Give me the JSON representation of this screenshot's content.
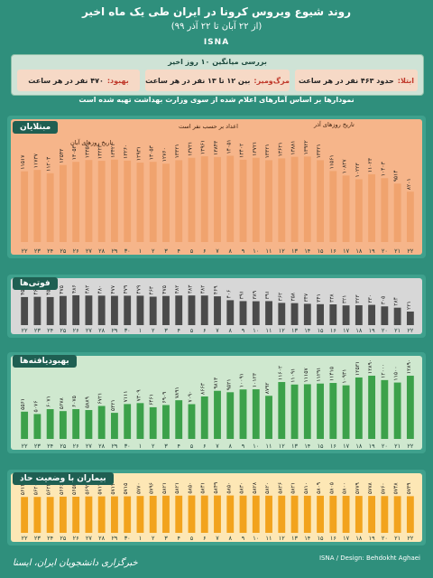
{
  "header": {
    "title": "روند شیوع ویروس کرونا در ایران طی یک ماه اخیر",
    "subtitle": "(از ۲۲ آبان تا ۲۲ آذر ۹۹)",
    "logo": "ISNA"
  },
  "summary": {
    "title": "بررسی میانگین ۱۰ روز اخیر",
    "infected_label": "ابتلا:",
    "infected_value": "حدود ۴۶۳ نفر در هر ساعت",
    "deaths_label": "مرگ‌ومیر:",
    "deaths_value": "بین ۱۲ تا ۱۳ نفر در هر ساعت",
    "recovered_label": "بهبود:",
    "recovered_value": "۴۷۰ نفر در هر ساعت"
  },
  "note": "نمودارها بر اساس آمارهای اعلام شده از سوی وزارت بهداشت تهیه شده است",
  "colors": {
    "infected": "#f0a36e",
    "deaths": "#4a4a4a",
    "recovered": "#3ca14a",
    "critical": "#f2a31d"
  },
  "chart_data": [
    {
      "type": "bar",
      "title": "مبتلایان",
      "annotations": [
        "تاریخ روزهای آبان",
        "تاریخ روزهای آذر",
        "اعداد بر حسب نفر است"
      ],
      "categories": [
        "۲۲",
        "۲۳",
        "۲۴",
        "۲۵",
        "۲۶",
        "۲۷",
        "۲۸",
        "۲۹",
        "۳۰",
        "۱",
        "۲",
        "۳",
        "۴",
        "۵",
        "۶",
        "۷",
        "۸",
        "۹",
        "۱۰",
        "۱۱",
        "۱۲",
        "۱۳",
        "۱۴",
        "۱۵",
        "۱۶",
        "۱۷",
        "۱۸",
        "۱۹",
        "۲۰",
        "۲۱",
        "۲۲"
      ],
      "values": [
        11517,
        11737,
        11203,
        12543,
        13053,
        13352,
        13223,
        13421,
        13260,
        12931,
        13053,
        12760,
        13321,
        13721,
        13961,
        13843,
        14051,
        13402,
        13721,
        13321,
        13621,
        13881,
        13922,
        13321,
        11561,
        10827,
        10223,
        11023,
        10403,
        9514,
        8201
      ],
      "labels": [
        "۱۱۵۱۷",
        "۱۱۷۳۷",
        "۱۱۲۰۳",
        "۱۲۵۴۳",
        "۱۳۰۵۳",
        "۱۳۳۵۲",
        "۱۳۲۲۳",
        "۱۳۴۲۱",
        "۱۳۲۶۰",
        "۱۲۹۳۱",
        "۱۳۰۵۳",
        "۱۲۷۶۰",
        "۱۳۳۲۱",
        "۱۳۷۲۱",
        "۱۳۹۶۱",
        "۱۳۸۴۳",
        "۱۴۰۵۱",
        "۱۳۴۰۲",
        "۱۳۷۲۱",
        "۱۳۳۲۱",
        "۱۳۶۲۱",
        "۱۳۸۸۱",
        "۱۳۹۲۲",
        "۱۳۳۲۱",
        "۱۱۵۶۱",
        "۱۰۸۲۷",
        "۱۰۲۲۳",
        "۱۱۰۲۳",
        "۱۰۴۰۳",
        "۹۵۱۴",
        "۸۲۰۱"
      ],
      "ylim": [
        0,
        15000
      ]
    },
    {
      "type": "bar",
      "title": "فوتی‌ها",
      "categories": [
        "۲۲",
        "۲۳",
        "۲۴",
        "۲۵",
        "۲۶",
        "۲۷",
        "۲۸",
        "۲۹",
        "۳۰",
        "۱",
        "۲",
        "۳",
        "۴",
        "۵",
        "۶",
        "۷",
        "۸",
        "۹",
        "۱۰",
        "۱۱",
        "۱۲",
        "۱۳",
        "۱۴",
        "۱۵",
        "۱۶",
        "۱۷",
        "۱۸",
        "۱۹",
        "۲۰",
        "۲۱",
        "۲۲"
      ],
      "values": [
        457,
        461,
        457,
        475,
        486,
        482,
        480,
        477,
        479,
        479,
        463,
        475,
        482,
        483,
        482,
        469,
        406,
        391,
        389,
        391,
        362,
        358,
        347,
        341,
        338,
        321,
        323,
        330,
        305,
        284,
        221
      ],
      "labels": [
        "۴۵۷",
        "۴۶۱",
        "۴۵۷",
        "۴۷۵",
        "۴۸۶",
        "۴۸۲",
        "۴۸۰",
        "۴۷۷",
        "۴۷۹",
        "۴۷۹",
        "۴۶۳",
        "۴۷۵",
        "۴۸۲",
        "۴۸۳",
        "۴۸۲",
        "۴۶۹",
        "۴۰۶",
        "۳۹۱",
        "۳۸۹",
        "۳۹۱",
        "۳۶۲",
        "۳۵۸",
        "۳۴۷",
        "۳۴۱",
        "۳۳۸",
        "۳۲۱",
        "۳۲۳",
        "۳۳۰",
        "۳۰۵",
        "۲۸۴",
        "۲۲۱"
      ],
      "ylim": [
        0,
        500
      ]
    },
    {
      "type": "bar",
      "title": "بهبودیافته‌ها",
      "categories": [
        "۲۲",
        "۲۳",
        "۲۴",
        "۲۵",
        "۲۶",
        "۲۷",
        "۲۸",
        "۲۹",
        "۳۰",
        "۱",
        "۲",
        "۳",
        "۴",
        "۵",
        "۶",
        "۷",
        "۸",
        "۹",
        "۱۰",
        "۱۱",
        "۱۲",
        "۱۳",
        "۱۴",
        "۱۵",
        "۱۶",
        "۱۷",
        "۱۸",
        "۱۹",
        "۲۰",
        "۲۱",
        "۲۲"
      ],
      "values": [
        5561,
        5076,
        6071,
        5678,
        6075,
        5889,
        6721,
        5321,
        7111,
        7309,
        6461,
        6909,
        7891,
        7090,
        8663,
        9813,
        9521,
        10091,
        10123,
        8792,
        11602,
        11091,
        11157,
        11291,
        11415,
        10931,
        12531,
        12890,
        12000,
        11500,
        12890
      ],
      "labels": [
        "۵۵۶۱",
        "۵۰۷۶",
        "۶۰۷۱",
        "۵۶۷۸",
        "۶۰۷۵",
        "۵۸۸۹",
        "۶۷۲۱",
        "۵۳۲۱",
        "۷۱۱۱",
        "۷۳۰۹",
        "۶۴۶۱",
        "۶۹۰۹",
        "۷۸۹۱",
        "۷۰۹۰",
        "۸۶۶۳",
        "۹۸۱۳",
        "۹۵۲۱",
        "۱۰۰۹۱",
        "۱۰۱۲۳",
        "۸۷۹۲",
        "۱۱۶۰۲",
        "۱۱۰۹۱",
        "۱۱۱۵۷",
        "۱۱۲۹۱",
        "۱۱۴۱۵",
        "۱۰۹۳۱",
        "۱۲۵۳۱",
        "۱۲۸۹۰",
        "۱۲۰۰۰",
        "۱۱۵۰۰",
        "۱۲۸۹۰"
      ],
      "ylim": [
        0,
        14000
      ]
    },
    {
      "type": "bar",
      "title": "بیماران با وضعیت حاد",
      "categories": [
        "۲۲",
        "۲۳",
        "۲۴",
        "۲۵",
        "۲۶",
        "۲۷",
        "۲۸",
        "۲۹",
        "۳۰",
        "۱",
        "۲",
        "۳",
        "۴",
        "۵",
        "۶",
        "۷",
        "۸",
        "۹",
        "۱۰",
        "۱۱",
        "۱۲",
        "۱۳",
        "۱۴",
        "۱۵",
        "۱۶",
        "۱۷",
        "۱۸",
        "۱۹",
        "۲۰",
        "۲۱",
        "۲۲"
      ],
      "values": [
        5614,
        5620,
        5622,
        5666,
        5653,
        5699,
        5712,
        5713,
        5715,
        5770,
        5796,
        5821,
        5821,
        5850,
        5841,
        5849,
        5850,
        5830,
        5828,
        5820,
        5826,
        5821,
        5810,
        5809,
        5805,
        5800,
        5779,
        5778,
        5760,
        5748,
        5739
      ],
      "labels": [
        "۵۶۱۴",
        "۵۶۲۰",
        "۵۶۲۲",
        "۵۶۶۶",
        "۵۶۵۳",
        "۵۶۹۹",
        "۵۷۱۲",
        "۵۷۱۳",
        "۵۷۱۵",
        "۵۷۷۰",
        "۵۷۹۶",
        "۵۸۲۱",
        "۵۸۲۱",
        "۵۸۵۰",
        "۵۸۴۱",
        "۵۸۴۹",
        "۵۸۵۰",
        "۵۸۳۰",
        "۵۸۲۸",
        "۵۸۲۰",
        "۵۸۲۶",
        "۵۸۲۱",
        "۵۸۱۰",
        "۵۸۰۹",
        "۵۸۰۵",
        "۵۸۰۰",
        "۵۷۷۹",
        "۵۷۷۸",
        "۵۷۶۰",
        "۵۷۴۸",
        "۵۷۳۹"
      ],
      "ylim": [
        0,
        6500
      ]
    }
  ],
  "footer": {
    "brand": "خبرگزاری دانشجویان ایران، ایسنا",
    "design": "ISNA / Design: Behdokht Aghaei"
  }
}
